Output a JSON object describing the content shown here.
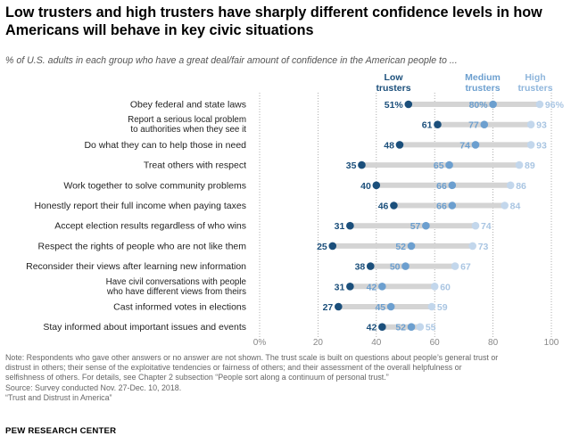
{
  "title": "Low trusters and high trusters have sharply different confidence levels in how Americans will behave in key civic situations",
  "subtitle": "% of U.S. adults in each group who have a great deal/fair amount of confidence in the American people to ...",
  "notes": [
    "Note: Respondents who gave other answers or no answer are not shown. The trust scale is built on questions about people’s general trust or",
    "distrust in others; their sense of the exploitative tendencies or fairness of others; and their assessment of the overall helpfulness or",
    "selfishness of others. For details, see Chapter 2 subsection “People sort along a continuum of personal trust.”",
    "Source: Survey conducted Nov. 27-Dec. 10, 2018.",
    "“Trust and Distrust in America”"
  ],
  "footer": "PEW RESEARCH CENTER",
  "colors": {
    "low": "#1b4f7b",
    "medium": "#6c9fcf",
    "high": "#c3d7ec",
    "bar": "#d4d4d4",
    "axis_text": "#888888",
    "grid": "#9a9a9a"
  },
  "chart_data": {
    "type": "dot",
    "xlim": [
      0,
      100
    ],
    "x_ticks": [
      {
        "value": 0,
        "label": "0%"
      },
      {
        "value": 20,
        "label": "20"
      },
      {
        "value": 40,
        "label": "40"
      },
      {
        "value": 60,
        "label": "60"
      },
      {
        "value": 80,
        "label": "80"
      },
      {
        "value": 100,
        "label": "100"
      }
    ],
    "legend": [
      {
        "key": "low",
        "label_lines": [
          "Low",
          "trusters"
        ]
      },
      {
        "key": "medium",
        "label_lines": [
          "Medium",
          "trusters"
        ]
      },
      {
        "key": "high",
        "label_lines": [
          "High",
          "trusters"
        ]
      }
    ],
    "categories": [
      {
        "label_lines": [
          "Obey federal and state laws"
        ],
        "low": 51,
        "medium": 80,
        "high": 96,
        "pct": true
      },
      {
        "label_lines": [
          "Report a serious local problem",
          "to authorities when they see it"
        ],
        "low": 61,
        "medium": 77,
        "high": 93
      },
      {
        "label_lines": [
          "Do what they can to help those in need"
        ],
        "low": 48,
        "medium": 74,
        "high": 93
      },
      {
        "label_lines": [
          "Treat others with respect"
        ],
        "low": 35,
        "medium": 65,
        "high": 89
      },
      {
        "label_lines": [
          "Work together to solve community problems"
        ],
        "low": 40,
        "medium": 66,
        "high": 86
      },
      {
        "label_lines": [
          "Honestly report their full income when paying taxes"
        ],
        "low": 46,
        "medium": 66,
        "high": 84
      },
      {
        "label_lines": [
          "Accept election results regardless of who wins"
        ],
        "low": 31,
        "medium": 57,
        "high": 74
      },
      {
        "label_lines": [
          "Respect the rights of people who are not like them"
        ],
        "low": 25,
        "medium": 52,
        "high": 73
      },
      {
        "label_lines": [
          "Reconsider their views after learning new information"
        ],
        "low": 38,
        "medium": 50,
        "high": 67
      },
      {
        "label_lines": [
          "Have civil conversations with people",
          "who have different views from theirs"
        ],
        "low": 31,
        "medium": 42,
        "high": 60
      },
      {
        "label_lines": [
          "Cast informed votes in elections"
        ],
        "low": 27,
        "medium": 45,
        "high": 59
      },
      {
        "label_lines": [
          "Stay informed about important issues and events"
        ],
        "low": 42,
        "medium": 52,
        "high": 55
      }
    ]
  }
}
